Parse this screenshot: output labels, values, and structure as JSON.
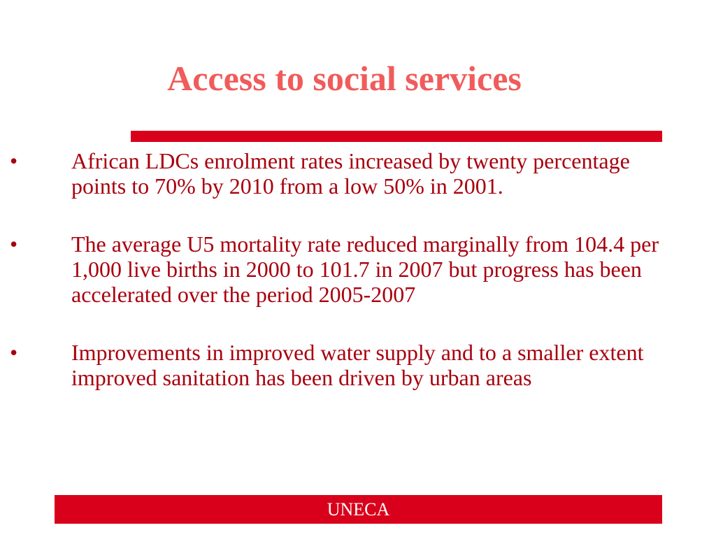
{
  "slide": {
    "title": "Access to social services",
    "bullet_glyph": "•",
    "bullets": [
      {
        "text": "African LDCs enrolment rates increased by twenty percentage points to 70% by 2010 from a low 50% in 2001."
      },
      {
        "text": "The average U5 mortality rate reduced marginally from 104.4 per 1,000 live births in 2000 to 101.7 in 2007 but progress has been accelerated over the period 2005-2007"
      },
      {
        "text": "Improvements in improved water supply and to a smaller extent improved sanitation has been driven by urban areas"
      }
    ],
    "footer": "UNECA"
  },
  "colors": {
    "title": "#f15b5b",
    "bar": "#d9001b",
    "body_text": "#a8000e",
    "footer_text": "#ffffff",
    "background": "#ffffff"
  }
}
